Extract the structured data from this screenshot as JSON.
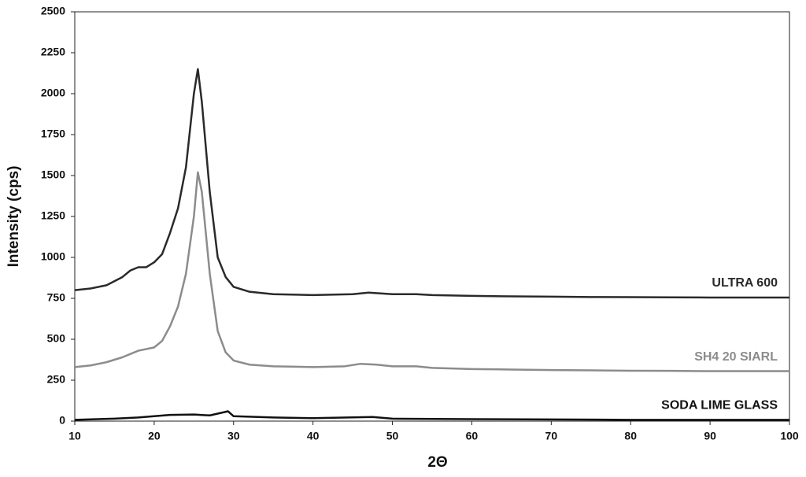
{
  "chart_data": {
    "type": "line",
    "xlabel": "2Θ",
    "ylabel": "Intensity (cps)",
    "xlim": [
      10,
      100
    ],
    "xticks": [
      10,
      20,
      30,
      40,
      50,
      60,
      70,
      80,
      90,
      100
    ],
    "ylim": [
      0,
      2500
    ],
    "yticks": [
      0,
      250,
      500,
      750,
      1000,
      1250,
      1500,
      1750,
      2000,
      2250,
      2500
    ],
    "grid": false,
    "series": [
      {
        "name": "ULTRA 600",
        "color": "#2a2a2a",
        "x": [
          10,
          12,
          14,
          16,
          17,
          18,
          19,
          20,
          21,
          22,
          23,
          24,
          25,
          25.5,
          26,
          27,
          28,
          29,
          30,
          32,
          35,
          40,
          45,
          47,
          50,
          53,
          55,
          60,
          65,
          70,
          75,
          80,
          85,
          90,
          95,
          100
        ],
        "values": [
          800,
          810,
          830,
          880,
          920,
          940,
          940,
          970,
          1020,
          1150,
          1300,
          1550,
          2000,
          2150,
          1950,
          1400,
          1000,
          880,
          820,
          790,
          775,
          770,
          775,
          785,
          775,
          775,
          770,
          765,
          762,
          760,
          758,
          757,
          756,
          755,
          755,
          755
        ]
      },
      {
        "name": "SH4 20 SIARL",
        "color": "#8c8c8c",
        "x": [
          10,
          12,
          14,
          16,
          18,
          20,
          21,
          22,
          23,
          24,
          25,
          25.5,
          26,
          27,
          28,
          29,
          30,
          32,
          35,
          40,
          44,
          46,
          48,
          50,
          53,
          55,
          60,
          65,
          70,
          75,
          80,
          85,
          90,
          95,
          100
        ],
        "values": [
          330,
          340,
          360,
          390,
          430,
          450,
          490,
          580,
          700,
          900,
          1250,
          1520,
          1400,
          900,
          550,
          420,
          370,
          345,
          335,
          330,
          335,
          350,
          345,
          335,
          335,
          325,
          318,
          315,
          312,
          310,
          308,
          307,
          305,
          305,
          305
        ]
      },
      {
        "name": "SODA LIME GLASS",
        "color": "#111111",
        "x": [
          10,
          15,
          18,
          20,
          22,
          25,
          27,
          29.3,
          30,
          35,
          40,
          47.5,
          50,
          60,
          70,
          80,
          90,
          100
        ],
        "values": [
          8,
          15,
          22,
          30,
          38,
          40,
          35,
          60,
          30,
          22,
          18,
          25,
          15,
          12,
          10,
          8,
          8,
          8
        ]
      }
    ]
  }
}
